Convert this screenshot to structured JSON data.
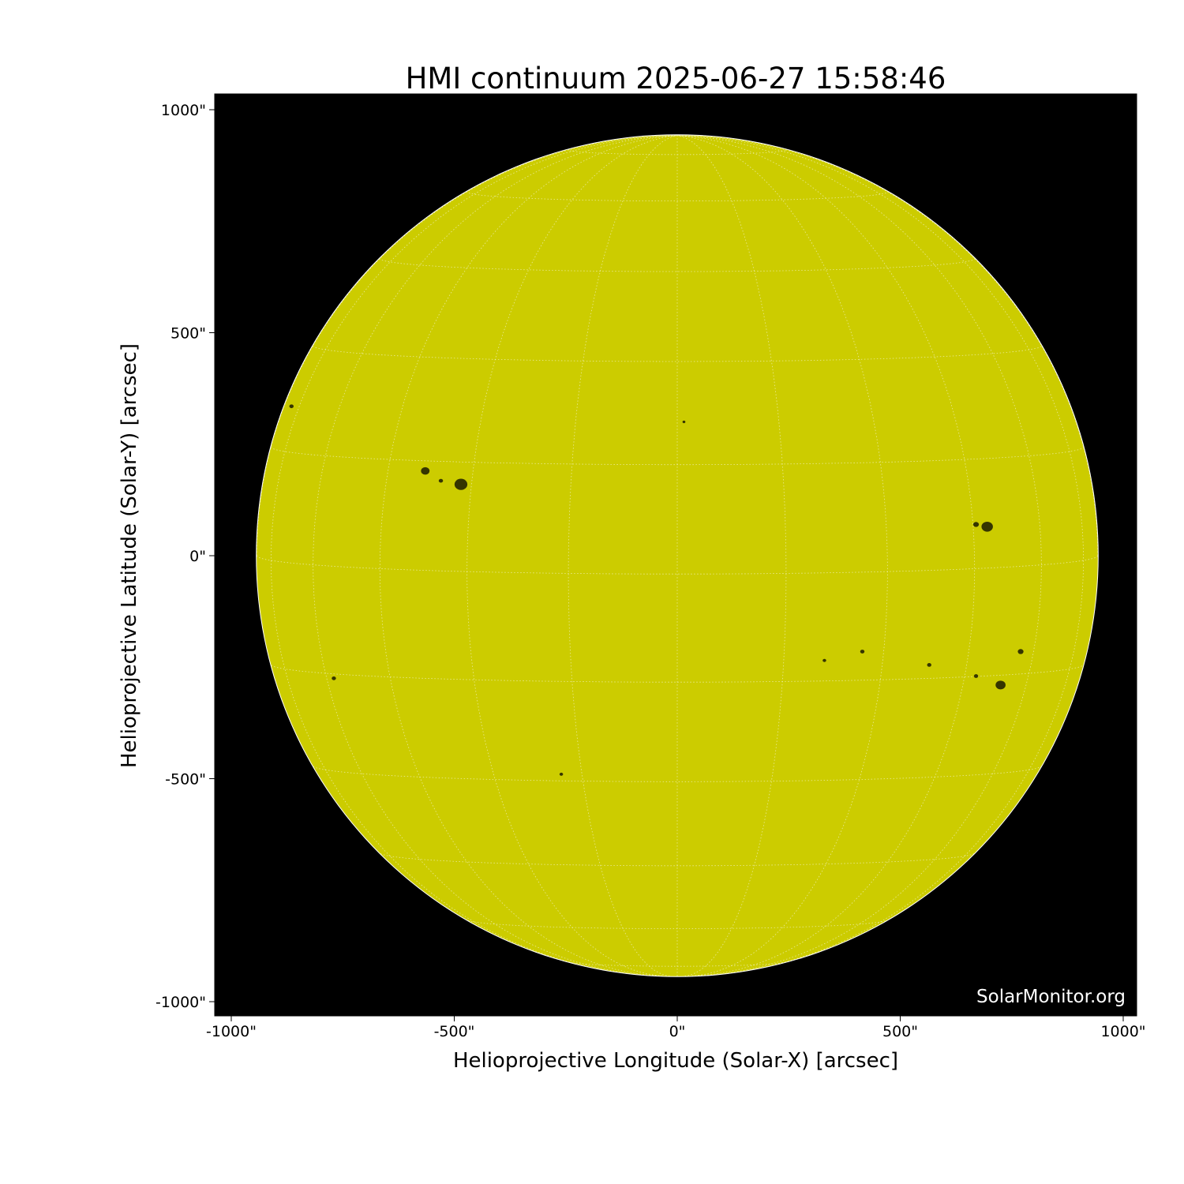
{
  "chart_data": {
    "type": "heatmap",
    "title": "HMI continuum 2025-06-27 15:58:46",
    "xlabel": "Helioprojective Longitude (Solar-X) [arcsec]",
    "ylabel": "Helioprojective Latitude (Solar-Y) [arcsec]",
    "xlim": [
      -1037,
      1030
    ],
    "ylim": [
      -1033,
      1033
    ],
    "xticks": [
      -1000,
      -500,
      0,
      500,
      1000
    ],
    "yticks": [
      -1000,
      -500,
      0,
      500,
      1000
    ],
    "xtick_labels": [
      "-1000\"",
      "-500\"",
      "0\"",
      "500\"",
      "1000\""
    ],
    "ytick_labels": [
      "-1000\"",
      "-500\"",
      "0\"",
      "500\"",
      "1000\""
    ],
    "solar_radius_arcsec": 943,
    "grid": "heliographic lat/lon every 15 degrees, dotted",
    "colors": {
      "disk": "#cccc00",
      "background": "#000000",
      "grid": "#ffffff",
      "spots": "#1a1a00"
    },
    "watermark": "SolarMonitor.org"
  }
}
